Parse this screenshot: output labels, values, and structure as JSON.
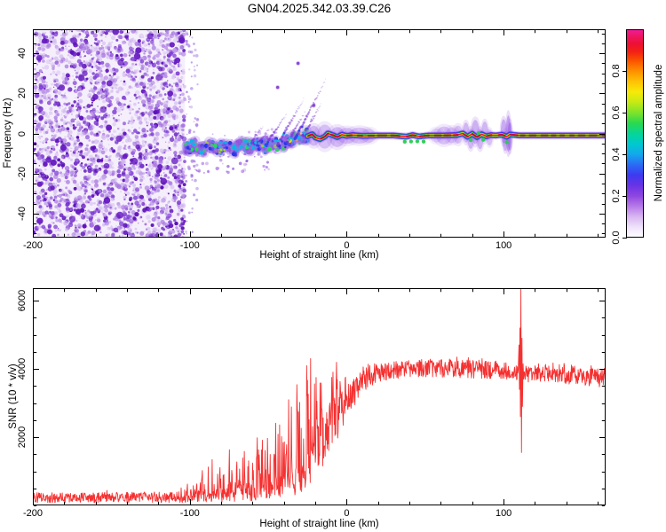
{
  "title": "GN04.2025.342.03.39.C26",
  "layout_colors": {
    "background": "#ffffff",
    "axis": "#000000"
  },
  "chart_data": [
    {
      "id": "spectrogram",
      "type": "heatmap",
      "xlabel": "Height of straight line (km)",
      "ylabel": "Frequency (Hz)",
      "xlim": [
        -200,
        165
      ],
      "ylim": [
        -52,
        52
      ],
      "xticks": [
        -200,
        -100,
        0,
        100
      ],
      "xtick_minor_step": 20,
      "yticks": [
        -40,
        -20,
        0,
        20,
        40
      ],
      "ytick_minor_step": 5,
      "grid": false,
      "colorbar": {
        "label": "Normalized spectral amplitude",
        "ticks": [
          0,
          0.2,
          0.4,
          0.6,
          0.8
        ],
        "range": [
          0,
          1
        ],
        "stops": [
          [
            0,
            "#ffffff"
          ],
          [
            0.05,
            "#efe3fa"
          ],
          [
            0.1,
            "#d9b6f2"
          ],
          [
            0.15,
            "#b77ae9"
          ],
          [
            0.2,
            "#8f46e0"
          ],
          [
            0.25,
            "#6a33e6"
          ],
          [
            0.3,
            "#3d3af0"
          ],
          [
            0.35,
            "#2a6cf5"
          ],
          [
            0.4,
            "#14a8ec"
          ],
          [
            0.45,
            "#00c9cf"
          ],
          [
            0.5,
            "#06d596"
          ],
          [
            0.55,
            "#2bd94e"
          ],
          [
            0.6,
            "#7ee32a"
          ],
          [
            0.65,
            "#c6ea14"
          ],
          [
            0.7,
            "#f8e908"
          ],
          [
            0.75,
            "#ffc103"
          ],
          [
            0.8,
            "#ff8e00"
          ],
          [
            0.85,
            "#fb5200"
          ],
          [
            0.89,
            "#f32312"
          ],
          [
            0.93,
            "#ee1034"
          ],
          [
            0.97,
            "#ee1767"
          ],
          [
            1,
            "#f41a9c"
          ]
        ]
      },
      "features": {
        "noise_region": {
          "x_range": [
            -200,
            -103
          ],
          "freq_range": [
            -52,
            52
          ],
          "amplitude_range": [
            0,
            0.35
          ],
          "blob_count": 2800,
          "chunky_blob_count": 60
        },
        "sparse_noise_columns": {
          "x_range": [
            -103,
            -95
          ],
          "dot_count": 70
        },
        "carrier_trace_noisy": {
          "x_range": [
            -103,
            -25
          ],
          "spread_hz": 2.9,
          "amplitude_range": [
            0.1,
            0.6
          ],
          "blob_count": 430,
          "path": [
            [
              -103,
              -8
            ],
            [
              -97,
              -6.5
            ],
            [
              -92,
              -8.5
            ],
            [
              -87,
              -6
            ],
            [
              -82,
              -8
            ],
            [
              -77,
              -6
            ],
            [
              -72,
              -7.5
            ],
            [
              -67,
              -5.5
            ],
            [
              -62,
              -7
            ],
            [
              -57,
              -5.5
            ],
            [
              -52,
              -6.5
            ],
            [
              -47,
              -4.5
            ],
            [
              -42,
              -6
            ],
            [
              -37,
              -4
            ],
            [
              -32,
              -2.5
            ],
            [
              -28,
              -1.5
            ],
            [
              -25,
              -1.2
            ]
          ]
        },
        "carrier_trace_locked": {
          "x_range": [
            -25,
            165
          ],
          "amplitude": 1.0,
          "path": [
            [
              -25,
              -1.4
            ],
            [
              -22,
              -0.4
            ],
            [
              -20,
              -2
            ],
            [
              -17,
              -2.8
            ],
            [
              -14,
              -1.6
            ],
            [
              -12,
              0
            ],
            [
              -9,
              -0.8
            ],
            [
              -6,
              -1.8
            ],
            [
              -3,
              -0.6
            ],
            [
              0,
              -1.2
            ],
            [
              4,
              -0.8
            ],
            [
              10,
              -1.2
            ],
            [
              20,
              -1
            ],
            [
              30,
              -1
            ],
            [
              38,
              -1.6
            ],
            [
              42,
              -0.8
            ],
            [
              46,
              -1.5
            ],
            [
              52,
              -1
            ],
            [
              62,
              -1
            ],
            [
              70,
              -0.8
            ],
            [
              74,
              0
            ],
            [
              77,
              -1.6
            ],
            [
              80,
              -0.2
            ],
            [
              83,
              -1.8
            ],
            [
              86,
              -0.4
            ],
            [
              89,
              -1.4
            ],
            [
              92,
              -0.8
            ],
            [
              95,
              -1
            ],
            [
              99,
              -0.6
            ],
            [
              102,
              -1.6
            ],
            [
              104,
              -0.5
            ],
            [
              110,
              -1
            ],
            [
              130,
              -1
            ],
            [
              150,
              -1
            ],
            [
              165,
              -1
            ]
          ]
        },
        "multipath_streaks": [
          [
            -63,
            10,
            1.1
          ],
          [
            -57,
            7,
            1.0
          ],
          [
            -52,
            14,
            1.2
          ],
          [
            -44,
            17,
            1.35
          ],
          [
            -38,
            12,
            1.3
          ],
          [
            -33,
            20,
            1.5
          ],
          [
            -28,
            12,
            1.4
          ]
        ],
        "isolated_dots": [
          [
            -31,
            35
          ],
          [
            -44,
            23
          ],
          [
            -21,
            14
          ]
        ],
        "fuzz_blobs": [
          [
            -21,
            0,
            4,
            5,
            0.3
          ],
          [
            -14,
            0,
            5,
            6,
            0.26
          ],
          [
            -6,
            0,
            5,
            5,
            0.28
          ],
          [
            0,
            0,
            6,
            4,
            0.25
          ],
          [
            8,
            0,
            7,
            4,
            0.25
          ],
          [
            14,
            0,
            5,
            3.5,
            0.2
          ],
          [
            57,
            0,
            4,
            3.5,
            0.18
          ],
          [
            62,
            0,
            5,
            4.5,
            0.25
          ],
          [
            67,
            0,
            4,
            4,
            0.22
          ],
          [
            71,
            0,
            3,
            4.5,
            0.25
          ],
          [
            76,
            1.5,
            2,
            5,
            0.3
          ],
          [
            79,
            -2,
            2,
            5,
            0.3
          ],
          [
            82,
            2,
            2.5,
            6,
            0.32
          ],
          [
            85,
            -2,
            2,
            5,
            0.3
          ],
          [
            88,
            2,
            2,
            5,
            0.3
          ],
          [
            91,
            -1,
            2,
            4,
            0.25
          ],
          [
            100,
            2,
            1.8,
            6,
            0.35
          ],
          [
            101,
            -2.5,
            1.5,
            5,
            0.33
          ],
          [
            103,
            1,
            1.5,
            9,
            0.4
          ],
          [
            104,
            -1,
            1.5,
            7,
            0.38
          ]
        ],
        "green_knots": [
          [
            37,
            -2.6
          ],
          [
            41,
            -3
          ],
          [
            45,
            -2.6
          ],
          [
            49,
            -2.8
          ],
          [
            79,
            -2.7
          ],
          [
            84,
            1.5
          ],
          [
            87,
            -2.4
          ],
          [
            102,
            -2.8
          ]
        ]
      }
    },
    {
      "id": "snr",
      "type": "line",
      "xlabel": "Height of straight line (km)",
      "ylabel": "SNR (10 * v/v)",
      "xlim": [
        -200,
        165
      ],
      "ylim": [
        0,
        6365
      ],
      "xticks": [
        -200,
        -100,
        0,
        100
      ],
      "xtick_minor_step": 20,
      "yticks": [
        2000,
        4000,
        6000
      ],
      "ytick_minor_step": 500,
      "grid": false,
      "line_color": "#f53030",
      "series": [
        {
          "name": "SNR",
          "sample_step_km": 0.25,
          "envelope": [
            [
              -200,
              230,
              150,
              120,
              0.08
            ],
            [
              -150,
              230,
              150,
              120,
              0.08
            ],
            [
              -110,
              240,
              160,
              150,
              0.1
            ],
            [
              -103,
              250,
              170,
              260,
              0.2
            ],
            [
              -97,
              270,
              180,
              480,
              0.3
            ],
            [
              -90,
              290,
              190,
              750,
              0.35
            ],
            [
              -84,
              300,
              200,
              1000,
              0.38
            ],
            [
              -78,
              320,
              220,
              1200,
              0.4
            ],
            [
              -72,
              340,
              240,
              1350,
              0.4
            ],
            [
              -66,
              360,
              260,
              1500,
              0.42
            ],
            [
              -60,
              400,
              280,
              1550,
              0.44
            ],
            [
              -54,
              450,
              300,
              1600,
              0.45
            ],
            [
              -48,
              500,
              320,
              1750,
              0.46
            ],
            [
              -42,
              550,
              340,
              2000,
              0.48
            ],
            [
              -36,
              620,
              360,
              2600,
              0.5
            ],
            [
              -30,
              750,
              420,
              3100,
              0.52
            ],
            [
              -26,
              900,
              500,
              3250,
              0.55
            ],
            [
              -22,
              1250,
              650,
              2850,
              0.58
            ],
            [
              -18,
              1650,
              750,
              2450,
              0.6
            ],
            [
              -14,
              2000,
              800,
              2000,
              0.6
            ],
            [
              -10,
              2300,
              750,
              1700,
              0.6
            ],
            [
              -6,
              2600,
              650,
              1400,
              0.6
            ],
            [
              -2,
              2900,
              550,
              1100,
              0.58
            ],
            [
              2,
              3150,
              480,
              850,
              0.55
            ],
            [
              6,
              3400,
              400,
              650,
              0.52
            ],
            [
              10,
              3600,
              340,
              480,
              0.5
            ],
            [
              15,
              3780,
              300,
              330,
              0.45
            ],
            [
              20,
              3880,
              280,
              230,
              0.42
            ],
            [
              28,
              3960,
              260,
              170,
              0.4
            ],
            [
              40,
              4000,
              255,
              150,
              0.4
            ],
            [
              55,
              4020,
              255,
              150,
              0.4
            ],
            [
              70,
              4000,
              255,
              150,
              0.4
            ],
            [
              85,
              3980,
              260,
              150,
              0.4
            ],
            [
              100,
              3930,
              260,
              150,
              0.4
            ],
            [
              109,
              3900,
              250,
              150,
              0.4
            ],
            [
              113,
              3870,
              250,
              150,
              0.4
            ],
            [
              125,
              3840,
              250,
              150,
              0.4
            ],
            [
              140,
              3800,
              255,
              150,
              0.4
            ],
            [
              152,
              3760,
              260,
              150,
              0.4
            ],
            [
              165,
              3720,
              270,
              150,
              0.4
            ]
          ],
          "spike_feature": [
            [
              109.3,
              3950
            ],
            [
              109.8,
              4700
            ],
            [
              110.1,
              3400
            ],
            [
              110.4,
              5200
            ],
            [
              110.7,
              2600
            ],
            [
              111,
              6350
            ],
            [
              111.4,
              1550
            ],
            [
              111.7,
              4900
            ],
            [
              112,
              2900
            ],
            [
              112.4,
              4150
            ],
            [
              112.8,
              3700
            ]
          ]
        }
      ]
    }
  ]
}
